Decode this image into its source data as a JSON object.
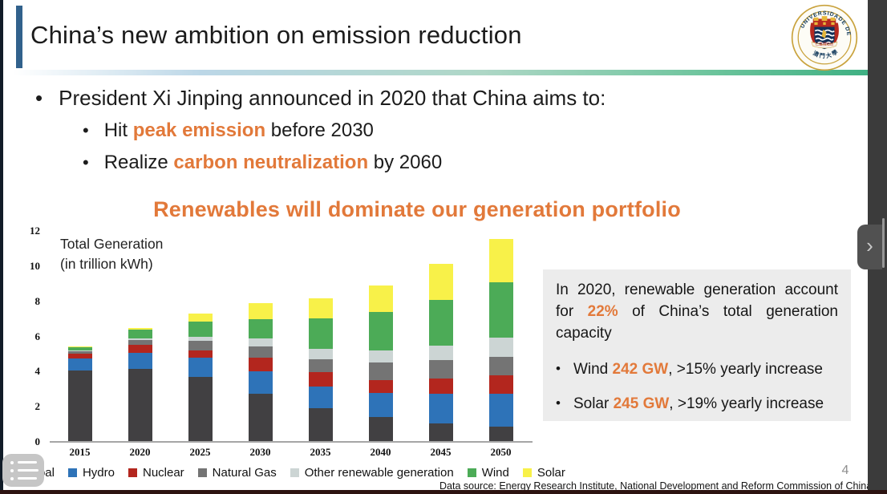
{
  "slide": {
    "title": "China’s new ambition on emission reduction",
    "bullet_main": "President Xi Jinping announced in 2020 that China aims to:",
    "bullet_peak": {
      "pre": "Hit ",
      "highlight": "peak emission",
      "post": " before 2030"
    },
    "bullet_carbon": {
      "pre": "Realize ",
      "highlight": "carbon neutralization",
      "post": " by 2060"
    },
    "chart_heading": "Renewables will dominate our generation portfolio",
    "source_note": "Data source: Energy Research Institute, National Development and Reform Commission of China",
    "page_number": "4",
    "accent_color": "#e2793a"
  },
  "logo": {
    "ring_text": "UNIVERSIDADE DE MACAU",
    "bottom_text": "澳 門 大 學",
    "motto_text": "仁義禮知信"
  },
  "info_box": {
    "paragraph": {
      "pre": "In 2020, renewable generation account for ",
      "highlight": "22%",
      "post": " of China’s total generation capacity"
    },
    "bullets": [
      {
        "pre": "Wind ",
        "highlight": "242 GW",
        "post": ", >15% yearly increase"
      },
      {
        "pre": "Solar ",
        "highlight": "245 GW",
        "post": ", >19% yearly increase"
      }
    ]
  },
  "chart_data": {
    "type": "bar",
    "stacked": true,
    "title": "Renewables will dominate our generation portfolio",
    "annotation": {
      "line1": "Total Generation",
      "line2": "(in trillion kWh)"
    },
    "categories": [
      "2015",
      "2020",
      "2025",
      "2030",
      "2035",
      "2040",
      "2045",
      "2050"
    ],
    "series": [
      {
        "name": "Coal",
        "color": "#414042",
        "values": [
          4.05,
          4.15,
          3.7,
          2.75,
          1.9,
          1.4,
          1.05,
          0.85
        ]
      },
      {
        "name": "Hydro",
        "color": "#2e73b8",
        "values": [
          0.7,
          0.9,
          1.1,
          1.25,
          1.25,
          1.4,
          1.7,
          1.9
        ]
      },
      {
        "name": "Nuclear",
        "color": "#b3261e",
        "values": [
          0.25,
          0.45,
          0.4,
          0.8,
          0.8,
          0.7,
          0.85,
          1.05
        ]
      },
      {
        "name": "Natural Gas",
        "color": "#747474",
        "values": [
          0.15,
          0.3,
          0.55,
          0.65,
          0.75,
          1.0,
          1.05,
          1.05
        ]
      },
      {
        "name": "Other renewable generation",
        "color": "#ccd5d4",
        "values": [
          0.05,
          0.1,
          0.25,
          0.45,
          0.6,
          0.7,
          0.85,
          1.1
        ]
      },
      {
        "name": "Wind",
        "color": "#4cab57",
        "values": [
          0.2,
          0.5,
          0.85,
          1.1,
          1.75,
          2.2,
          2.6,
          3.15
        ]
      },
      {
        "name": "Solar",
        "color": "#f8f149",
        "values": [
          0.05,
          0.1,
          0.45,
          0.9,
          1.1,
          1.5,
          2.05,
          2.45
        ]
      }
    ],
    "ylim": [
      0,
      12
    ],
    "yticks": [
      0,
      2,
      4,
      6,
      8,
      10,
      12
    ],
    "grid": false,
    "legend_position": "bottom",
    "totals": [
      5.45,
      6.5,
      7.3,
      7.9,
      8.15,
      8.9,
      10.15,
      11.55
    ]
  },
  "viewer": {
    "next_chevron": "›"
  }
}
